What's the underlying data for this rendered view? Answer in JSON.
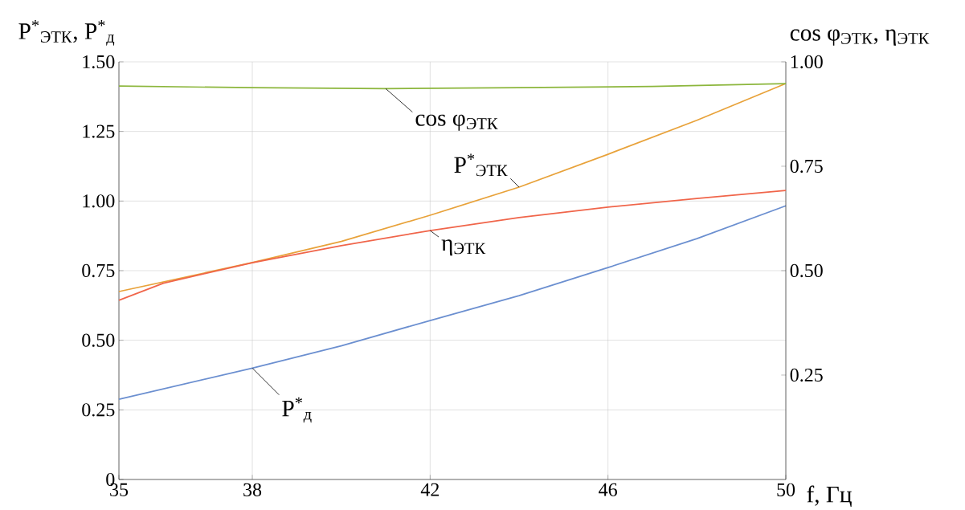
{
  "chart_data": {
    "type": "line",
    "xlabel": "f, Гц",
    "ylabel": "P$^{*}$$_{ЭТК}$, P$^{*}$$_{д}$",
    "y2label": "cos φ$_{ЭТК}$, η$_{ЭТК}$",
    "xlim": [
      35,
      50
    ],
    "xticks": [
      35,
      38,
      42,
      46,
      50
    ],
    "ylim": [
      0,
      1.5
    ],
    "yticks": [
      {
        "value": 0,
        "label": "0"
      },
      0.25,
      {
        "value": 0.5,
        "label": "0.50"
      },
      0.75,
      {
        "value": 1,
        "label": "1.00"
      },
      1.25,
      {
        "value": 1.5,
        "label": "1.50"
      }
    ],
    "y2lim": [
      0,
      1
    ],
    "y2ticks": [
      0.25,
      {
        "value": 0.5,
        "label": "0.50"
      },
      0.75,
      {
        "value": 1,
        "label": "1.00"
      }
    ],
    "grid": true,
    "marker": "none",
    "line_style": "solid",
    "series": [
      {
        "name": "cos φ$_{ЭТК}$",
        "color": "#8cb63c",
        "axis": "y2",
        "x": [
          35,
          38,
          41,
          44,
          47,
          50
        ],
        "values": [
          0.942,
          0.938,
          0.936,
          0.938,
          0.941,
          0.948
        ]
      },
      {
        "name": "P$^{*}$$_{ЭТК}$",
        "color": "#e8a23a",
        "x": [
          35,
          38,
          40,
          42,
          44,
          46,
          48,
          50
        ],
        "values": [
          0.675,
          0.779,
          0.855,
          0.949,
          1.05,
          1.168,
          1.29,
          1.422
        ]
      },
      {
        "name": "η$_{ЭТК}$",
        "color": "#f0654a",
        "axis": "y2",
        "x": [
          35,
          36,
          38,
          40,
          42,
          44,
          46,
          48,
          50
        ],
        "values": [
          0.429,
          0.47,
          0.519,
          0.56,
          0.596,
          0.627,
          0.652,
          0.673,
          0.692
        ]
      },
      {
        "name": "P$^{*}$$_{д}$",
        "color": "#6b8fd0",
        "x": [
          35,
          38,
          40,
          42,
          44,
          46,
          48,
          50
        ],
        "values": [
          0.288,
          0.4,
          0.48,
          0.571,
          0.66,
          0.761,
          0.865,
          0.983
        ]
      }
    ]
  }
}
